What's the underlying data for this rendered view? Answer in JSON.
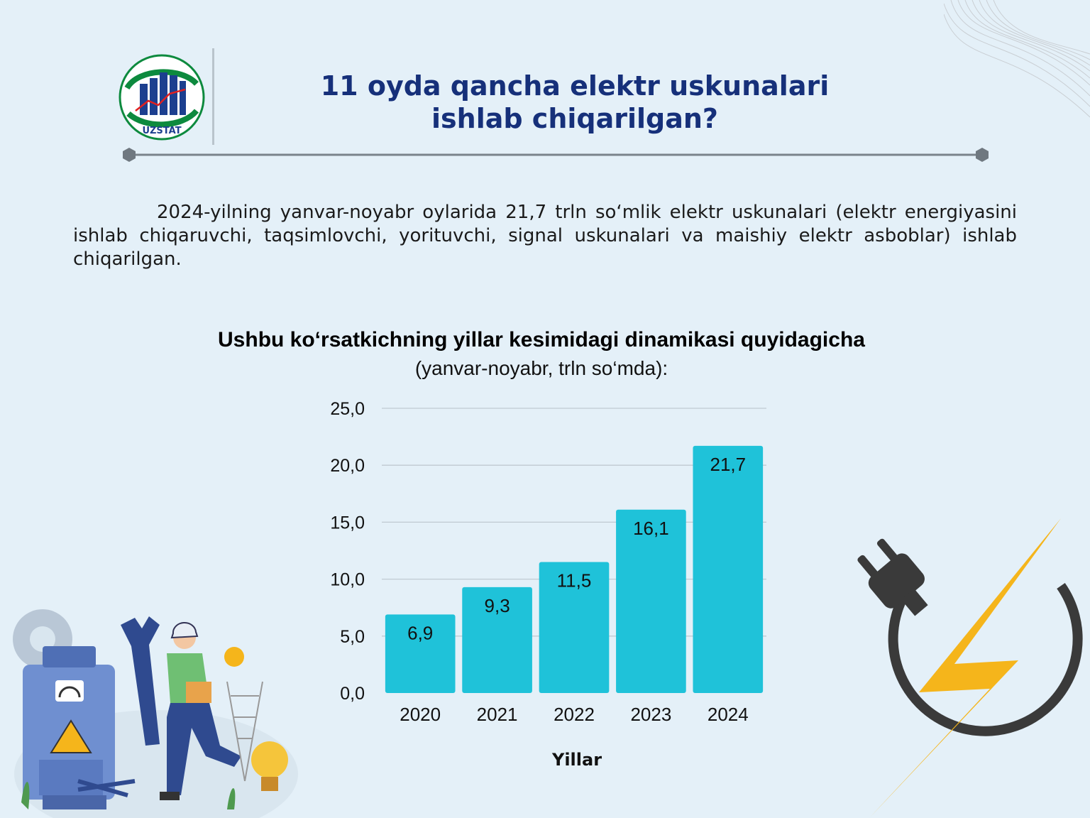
{
  "logo": {
    "text": "UZSTAT",
    "icon": "uzstat-logo-icon"
  },
  "header": {
    "title_line1": "11 oyda qancha elektr uskunalari",
    "title_line2": "ishlab chiqarilgan?"
  },
  "intro": {
    "text": "2024-yilning yanvar-noyabr oylarida 21,7 trln so‘mlik elektr uskunalari (elektr energiyasini ishlab chiqaruvchi, taqsimlovchi, yorituvchi, signal uskunalari va maishiy elektr asboblar) ishlab chiqarilgan."
  },
  "colors": {
    "bar": "#1fc2d9",
    "title": "#16307a",
    "bolt": "#f5b51b",
    "cable": "#3a3a3a"
  },
  "chart_data": {
    "type": "bar",
    "title": "Ushbu ko‘rsatkichning yillar kesimidagi dinamikasi quyidagicha",
    "subtitle": "(yanvar-noyabr, trln so‘mda):",
    "xlabel": "Yillar",
    "ylabel": "",
    "categories": [
      "2020",
      "2021",
      "2022",
      "2023",
      "2024"
    ],
    "values": [
      6.9,
      9.3,
      11.5,
      16.1,
      21.7
    ],
    "value_labels": [
      "6,9",
      "9,3",
      "11,5",
      "16,1",
      "21,7"
    ],
    "ylim": [
      0,
      25
    ],
    "yticks": [
      0,
      5,
      10,
      15,
      20,
      25
    ],
    "ytick_labels": [
      "0,0",
      "5,0",
      "10,0",
      "15,0",
      "20,0",
      "25,0"
    ],
    "grid": true,
    "legend": "none"
  }
}
